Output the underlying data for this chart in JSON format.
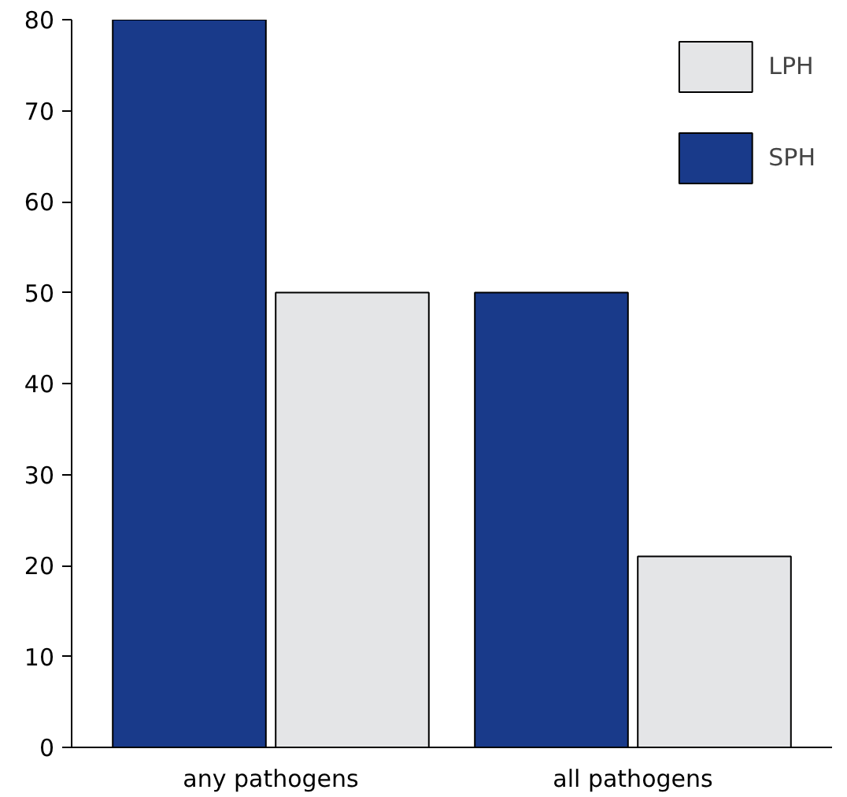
{
  "chart_data": {
    "type": "bar",
    "categories": [
      "any pathogens",
      "all pathogens"
    ],
    "series": [
      {
        "name": "SPH",
        "color": "#193a8a",
        "values": [
          80,
          50
        ]
      },
      {
        "name": "LPH",
        "color": "#e4e5e7",
        "values": [
          50,
          21
        ]
      }
    ],
    "ylim": [
      0,
      80
    ],
    "yticks": [
      0,
      10,
      20,
      30,
      40,
      50,
      60,
      70,
      80
    ],
    "grid": false,
    "legend": "top right"
  }
}
